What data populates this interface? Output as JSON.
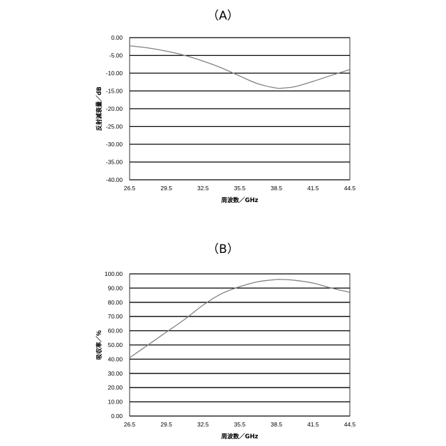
{
  "chart_data": [
    {
      "type": "line",
      "panel_label": "（A）",
      "xlabel": "周波数／GHz",
      "ylabel": "反射減衰量／dB",
      "xlim": [
        26.5,
        44.5
      ],
      "ylim": [
        -40,
        0
      ],
      "x_ticks": [
        "26.5",
        "29.5",
        "32.5",
        "35.5",
        "38.5",
        "41.5",
        "44.5"
      ],
      "y_ticks": [
        "0.00",
        "-5.00",
        "-10.00",
        "-15.00",
        "-20.00",
        "-25.00",
        "-30.00",
        "-35.00",
        "-40.00"
      ],
      "grid": true,
      "series": [
        {
          "x": [
            26.5,
            28,
            29.5,
            31,
            32.5,
            34,
            35.5,
            37,
            38.5,
            39,
            40,
            41.5,
            43,
            44.5
          ],
          "y": [
            -2.3,
            -2.9,
            -3.8,
            -5.0,
            -6.6,
            -8.5,
            -10.8,
            -13.0,
            -14.2,
            -14.2,
            -13.8,
            -12.3,
            -10.6,
            -9.0
          ]
        }
      ]
    },
    {
      "type": "line",
      "panel_label": "（B）",
      "xlabel": "周波数／GHz",
      "ylabel": "吸収率／％",
      "xlim": [
        26.5,
        44.5
      ],
      "ylim": [
        0,
        100
      ],
      "x_ticks": [
        "26.5",
        "29.5",
        "32.5",
        "35.5",
        "38.5",
        "41.5",
        "44.5"
      ],
      "y_ticks": [
        "100.00",
        "90.00",
        "80.00",
        "70.00",
        "60.00",
        "50.00",
        "40.00",
        "30.00",
        "20.00",
        "10.00",
        "0.00"
      ],
      "grid": true,
      "series": [
        {
          "x": [
            26.5,
            28,
            29.5,
            31,
            32.5,
            34,
            35.5,
            37,
            38.5,
            39,
            40,
            41.5,
            43,
            44.5
          ],
          "y": [
            41,
            50,
            59,
            68,
            78,
            86,
            91,
            94.5,
            96,
            96,
            95.5,
            93.5,
            90,
            87
          ]
        }
      ]
    }
  ]
}
